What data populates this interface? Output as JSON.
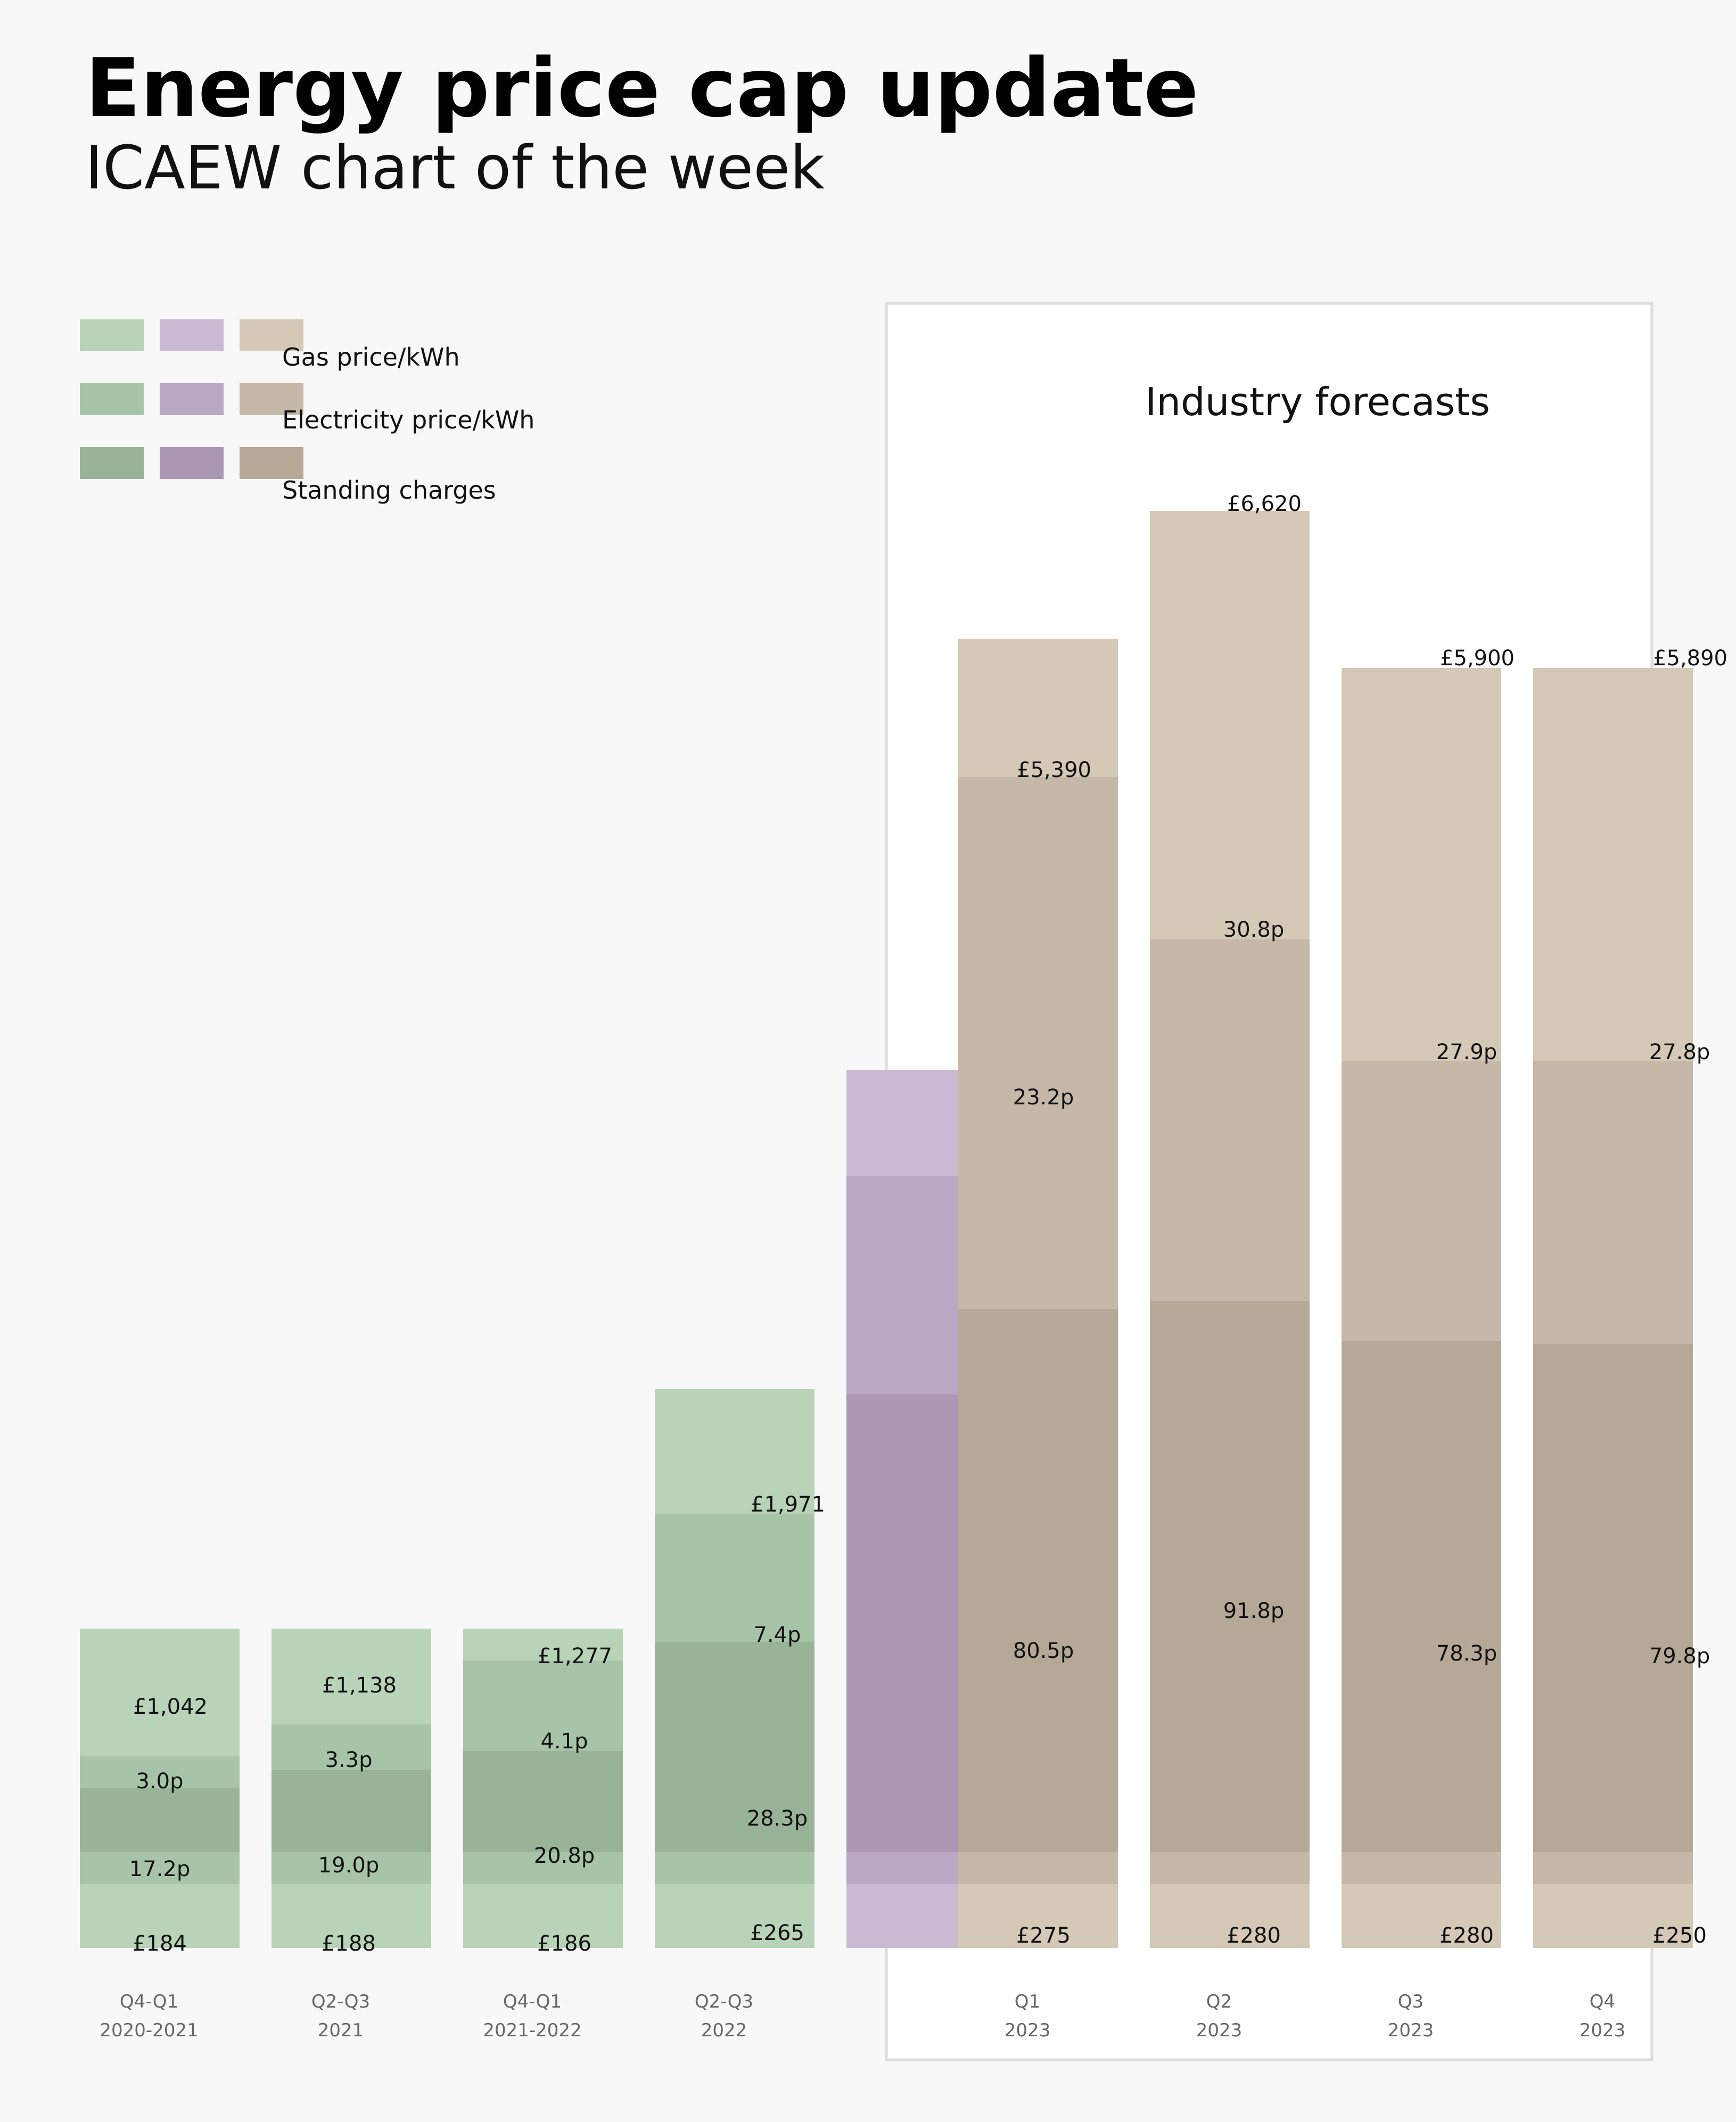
{
  "header": {
    "title": "Energy price cap update",
    "subtitle": "ICAEW chart of the week"
  },
  "legend": {
    "items": [
      "Gas price/kWh",
      "Electricity price/kWh",
      "Standing charges"
    ]
  },
  "forecast_panel": {
    "title": "Industry forecasts"
  },
  "colors": {
    "background": "#f8f8f8",
    "green": [
      "#b8d3b7",
      "#a8c4a8",
      "#98b397"
    ],
    "purple": [
      "#c9b9d3",
      "#b9a8c3",
      "#a997b3"
    ],
    "tan": [
      "#d4c8b7",
      "#c5b8a8",
      "#b5a897"
    ],
    "panel_bg": "#ffffff",
    "panel_border": "#dddddd"
  },
  "chart_data": {
    "type": "bar",
    "stacked": true,
    "categories": [
      {
        "line1": "Q4-Q1",
        "line2": "2020-2021",
        "color": "green",
        "forecast": false
      },
      {
        "line1": "Q2-Q3",
        "line2": "2021",
        "color": "green",
        "forecast": false
      },
      {
        "line1": "Q4-Q1",
        "line2": "2021-2022",
        "color": "green",
        "forecast": false
      },
      {
        "line1": "Q2-Q3",
        "line2": "2022",
        "color": "green",
        "forecast": false
      },
      {
        "line1": "",
        "line2": "",
        "color": "purple",
        "forecast": false
      },
      {
        "line1": "Q1",
        "line2": "2023",
        "color": "tan",
        "forecast": true
      },
      {
        "line1": "Q2",
        "line2": "2023",
        "color": "tan",
        "forecast": true
      },
      {
        "line1": "Q3",
        "line2": "2023",
        "color": "tan",
        "forecast": true
      },
      {
        "line1": "Q4",
        "line2": "2023",
        "color": "tan",
        "forecast": true
      }
    ],
    "segments": [
      {
        "name": "Standing charges",
        "values": [
          184,
          188,
          186,
          265,
          265,
          275,
          280,
          280,
          250
        ]
      },
      {
        "name": "Electricity price/kWh",
        "values": [
          17.2,
          19.0,
          20.8,
          28.3,
          52,
          80.5,
          91.8,
          78.3,
          79.8
        ]
      },
      {
        "name": "Gas price/kWh",
        "values": [
          3.0,
          3.3,
          4.1,
          7.4,
          14.8,
          23.2,
          30.8,
          27.9,
          27.8
        ]
      },
      {
        "name": "Annual bill",
        "values": [
          1042,
          1138,
          1277,
          1971,
          3549,
          5390,
          6620,
          5900,
          5890
        ]
      }
    ],
    "labels": {
      "standing": [
        "£184",
        "£188",
        "£186",
        "£265",
        "",
        "£275",
        "£280",
        "£280",
        "£250"
      ],
      "electricity": [
        "17.2p",
        "19.0p",
        "20.8p",
        "28.3p",
        "",
        "80.5p",
        "91.8p",
        "78.3p",
        "79.8p"
      ],
      "gas": [
        "3.0p",
        "3.3p",
        "4.1p",
        "7.4p",
        "",
        "23.2p",
        "30.8p",
        "27.9p",
        "27.8p"
      ],
      "annual": [
        "£1,042",
        "£1,138",
        "£1,277",
        "£1,971",
        "",
        "£5,390",
        "£6,620",
        "£5,900",
        "£5,890"
      ]
    },
    "note": ""
  }
}
